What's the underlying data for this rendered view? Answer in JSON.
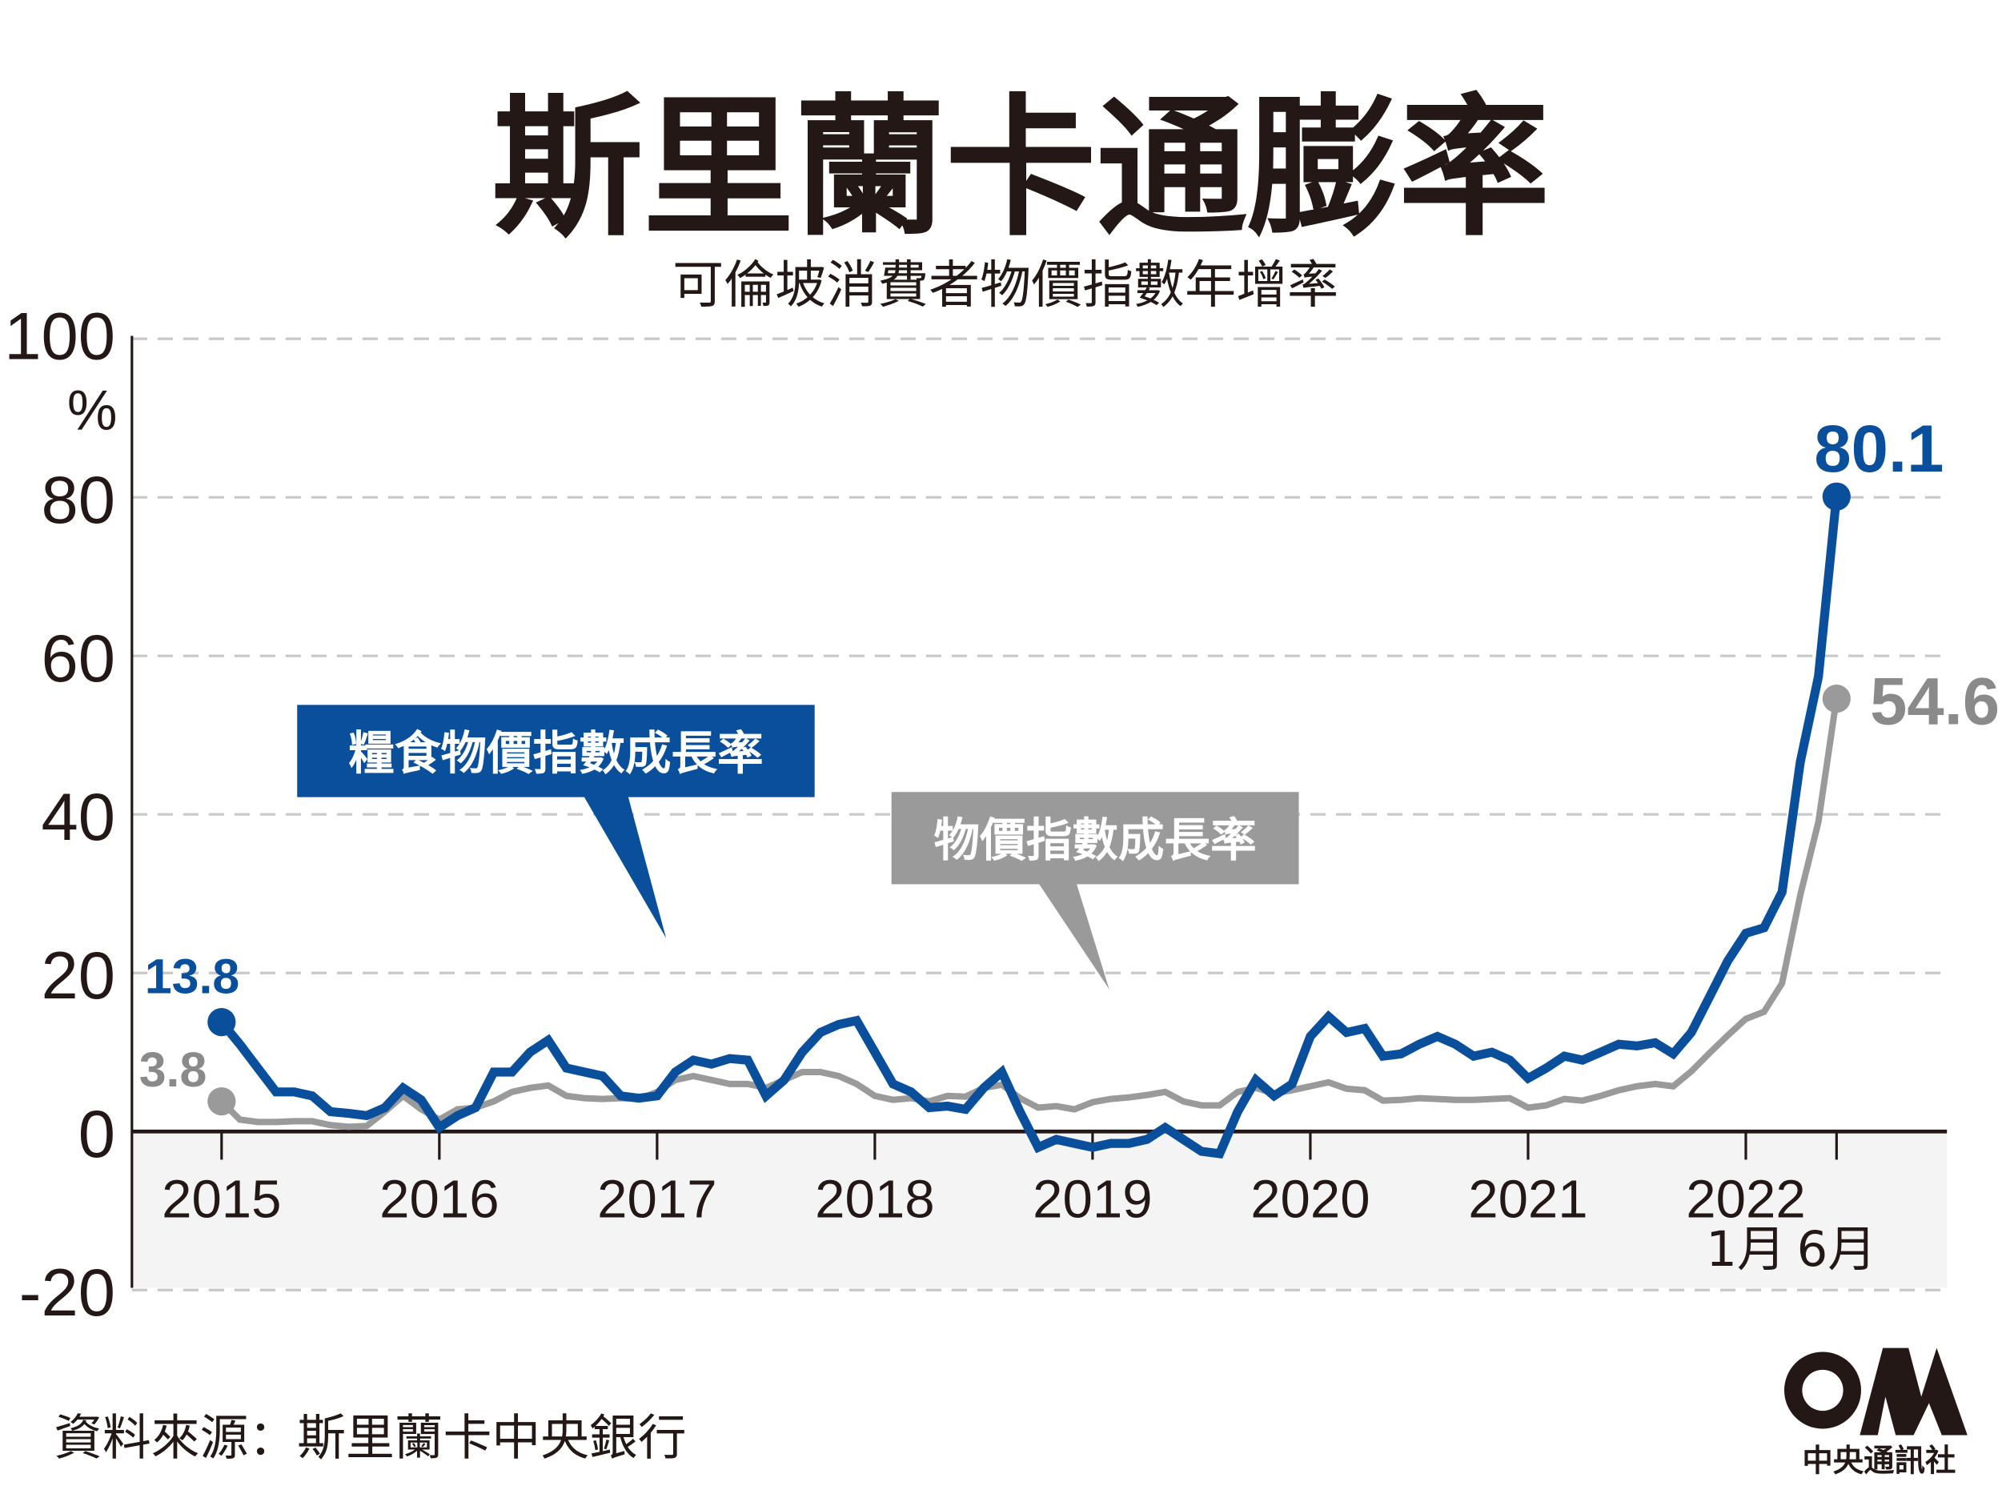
{
  "title": "斯里蘭卡通膨率",
  "subtitle": "可倫坡消費者物價指數年增率",
  "source": "資料來源：斯里蘭卡中央銀行",
  "logo": {
    "text": "中央通訊社",
    "mark": "CNA"
  },
  "colors": {
    "food": "#0a4f9c",
    "overall": "#9a9a9a",
    "band": "#f4f4f4",
    "grid": "#c8c8c8"
  },
  "chart_data": {
    "type": "line",
    "title": "斯里蘭卡通膨率",
    "subtitle": "可倫坡消費者物價指數年增率",
    "ylabel": "%",
    "ylim": [
      -20,
      100
    ],
    "yticks": [
      "100",
      "80",
      "60",
      "40",
      "20",
      "0",
      "-20"
    ],
    "ytick_values": [
      100,
      80,
      60,
      40,
      20,
      0,
      -20
    ],
    "xtick_labels": [
      "2015",
      "2016",
      "2017",
      "2018",
      "2019",
      "2020",
      "2021",
      "2022"
    ],
    "xtick_month_labels": [
      "1月",
      "6月"
    ],
    "x_start": "2015-01",
    "x_end": "2022-06",
    "frequency": "monthly",
    "grid": true,
    "series": [
      {
        "name": "糧食物價指數成長率",
        "color": "#0a4f9c",
        "start_label": "13.8",
        "end_label": "80.1",
        "values": [
          13.8,
          11,
          8,
          5,
          5,
          4.5,
          2.5,
          2.3,
          2,
          3,
          5.5,
          4,
          0.5,
          2,
          3,
          7.5,
          7.5,
          10,
          11.5,
          8,
          7.5,
          7,
          4.5,
          4.2,
          4.5,
          7.5,
          9,
          8.5,
          9.2,
          9,
          4.5,
          6.5,
          10,
          12.5,
          13.5,
          14,
          10,
          6,
          5,
          3,
          3.2,
          2.8,
          5.5,
          7.5,
          2.5,
          -2,
          -1,
          -1.5,
          -2,
          -1.5,
          -1.5,
          -1,
          0.5,
          -1,
          -2.5,
          -2.8,
          2.5,
          6.5,
          4.5,
          6,
          12,
          14.5,
          12.5,
          13,
          9.5,
          9.8,
          11,
          12,
          11,
          9.5,
          10,
          9,
          6.7,
          8,
          9.5,
          9,
          10,
          11,
          10.8,
          11.2,
          9.8,
          12.5,
          17,
          21.5,
          25,
          25.7,
          30.2,
          46.6,
          57.4,
          80.1
        ]
      },
      {
        "name": "物價指數成長率",
        "color": "#9a9a9a",
        "start_label": "3.8",
        "end_label": "54.6",
        "values": [
          3.8,
          1.5,
          1.2,
          1.2,
          1.3,
          1.3,
          0.8,
          0.6,
          0.7,
          2.5,
          4.5,
          2.8,
          1.5,
          2.8,
          3,
          3.8,
          5,
          5.5,
          5.8,
          4.5,
          4.2,
          4.1,
          4.2,
          4.1,
          5,
          6.5,
          7,
          6.5,
          6,
          6,
          5.5,
          6.5,
          7.5,
          7.5,
          7,
          6,
          4.5,
          4,
          4.2,
          3.8,
          4.5,
          4.4,
          5.5,
          5.9,
          4.2,
          3,
          3.2,
          2.8,
          3.7,
          4.1,
          4.3,
          4.6,
          5,
          3.8,
          3.3,
          3.3,
          5,
          5.5,
          4.8,
          5.2,
          5.7,
          6.2,
          5.4,
          5.2,
          3.9,
          4,
          4.2,
          4.1,
          4,
          4,
          4.1,
          4.2,
          3,
          3.3,
          4.1,
          3.9,
          4.5,
          5.2,
          5.7,
          6,
          5.7,
          7.6,
          9.9,
          12.1,
          14.2,
          15.1,
          18.7,
          29.8,
          39.1,
          54.6
        ]
      }
    ]
  }
}
